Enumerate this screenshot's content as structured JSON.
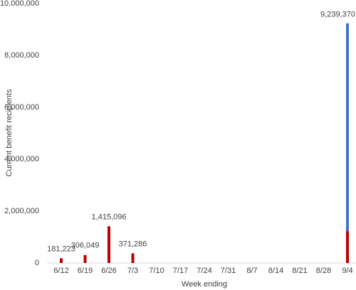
{
  "chart_data": {
    "type": "stacked-bar",
    "ylabel": "Current benefit recipients",
    "xlabel": "Week ending",
    "categories": [
      "6/12",
      "6/19",
      "6/26",
      "7/3",
      "7/10",
      "7/17",
      "7/24",
      "7/31",
      "8/7",
      "8/14",
      "8/21",
      "8/28",
      "9/4"
    ],
    "series": [
      {
        "color": "#c00000",
        "values": [
          181223,
          306049,
          1415096,
          371286,
          null,
          null,
          null,
          null,
          null,
          null,
          null,
          null,
          1230000
        ]
      },
      {
        "color": "#4472c4",
        "values": [
          null,
          null,
          null,
          null,
          null,
          null,
          null,
          null,
          null,
          null,
          null,
          null,
          8009370
        ]
      }
    ],
    "totals": [
      181223,
      306049,
      1415096,
      371286,
      null,
      null,
      null,
      null,
      null,
      null,
      null,
      null,
      9239370
    ],
    "total_labels": [
      "181,223",
      "306,049",
      "1,415,096",
      "371,286",
      null,
      null,
      null,
      null,
      null,
      null,
      null,
      null,
      "9,239,370"
    ],
    "ylim": [
      0,
      10000000
    ],
    "yticks": [
      0,
      {
        "value": 2000000,
        "label": "2,000,000"
      },
      {
        "value": 4000000,
        "label": "4,000,000"
      },
      {
        "value": 6000000,
        "label": "6,000,000"
      },
      {
        "value": 8000000,
        "label": "8,000,000"
      },
      {
        "value": 10000000,
        "label": "10,000,000"
      }
    ],
    "grid": false
  }
}
